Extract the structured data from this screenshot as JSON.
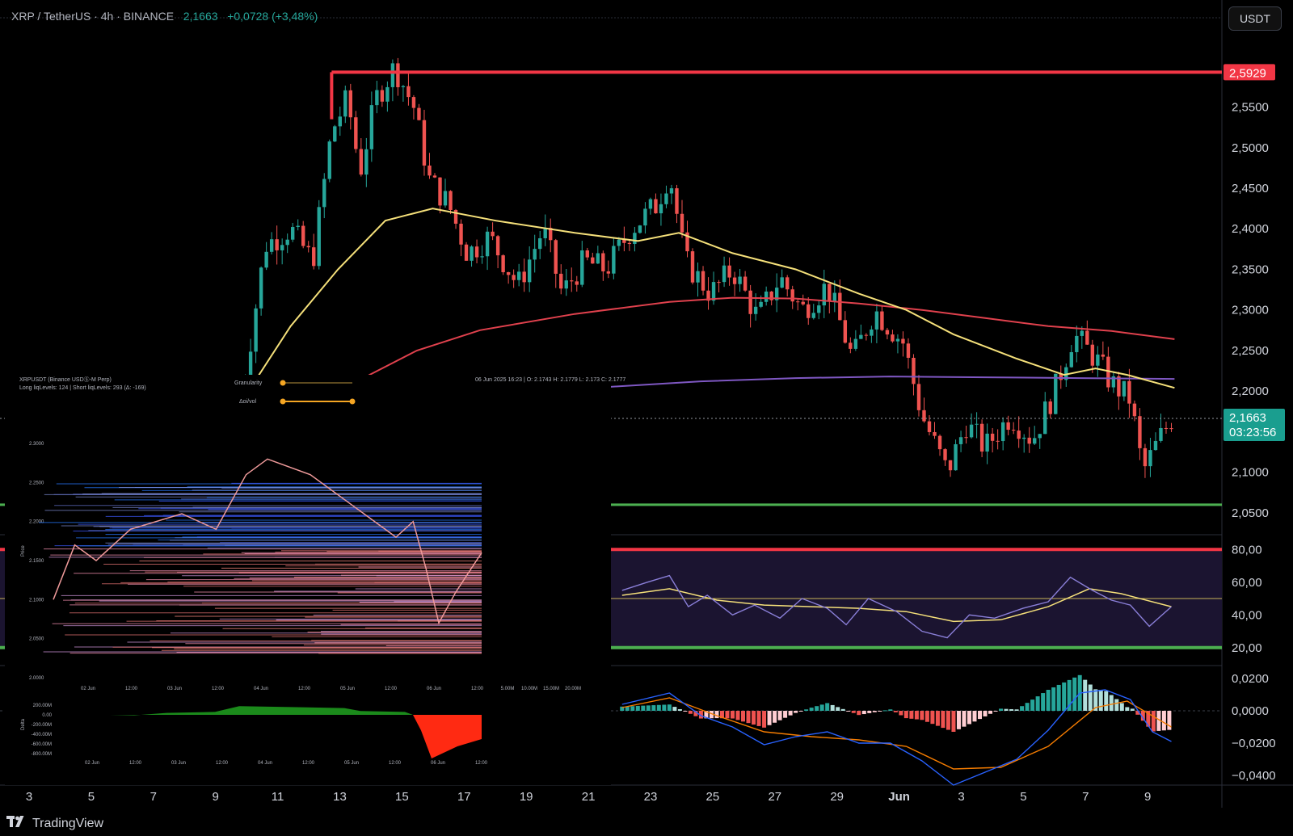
{
  "header": {
    "symbol": "XRP / TetherUS",
    "interval": "4h",
    "exchange": "BINANCE",
    "last": "2,1663",
    "change": "+0,0728 (+3,48%)"
  },
  "currency_button": "USDT",
  "price_axis": {
    "ticks": [
      "2,5500",
      "2,5000",
      "2,4500",
      "2,4000",
      "2,3500",
      "2,3000",
      "2,2500",
      "2,2000",
      "2,1000",
      "2,0500"
    ],
    "level_label": "2,5929",
    "last_label": "2,1663",
    "countdown": "03:23:56"
  },
  "rsi_axis": {
    "ticks": [
      "80,00",
      "60,00",
      "40,00",
      "20,00"
    ]
  },
  "macd_axis": {
    "ticks": [
      "0,0200",
      "0,0000",
      "−0,0200",
      "−0,0400"
    ]
  },
  "time_axis": {
    "labels": [
      "3",
      "5",
      "7",
      "9",
      "11",
      "13",
      "15",
      "17",
      "19",
      "21",
      "23",
      "25",
      "27",
      "29",
      "Jun",
      "3",
      "5",
      "7",
      "9"
    ]
  },
  "brand": "TradingView",
  "colors": {
    "bull": "#26a69a",
    "bear": "#ef5350",
    "resistance": "#f23645",
    "support": "#4caf50",
    "ma_fast": "#f5e07a",
    "ma_slow": "#e0414d",
    "ma_long": "#7e57c2"
  },
  "inset": {
    "title": "XRPUSDT (Binance USDⓈ-M Perp)",
    "subtitle": "Long liqLevels: 124 | Short liqLevels: 293 (Δ: -169)",
    "ohlc": "06 Jun 2025 16:23 | O: 2.1743 H: 2.1779 L: 2.173 C: 2.1777",
    "control1": "Granularity",
    "control2": "Δoi/vol",
    "y_label": "Price",
    "y_ticks": [
      "2.3000",
      "2.2500",
      "2.2000",
      "2.1500",
      "2.1000",
      "2.0500",
      "2.0000"
    ],
    "x_ticks": [
      "02 Jun",
      "12:00",
      "03 Jun",
      "12:00",
      "04 Jun",
      "12:00",
      "05 Jun",
      "12:00",
      "06 Jun",
      "12:00"
    ],
    "vol_ticks": [
      "5.00M",
      "10.00M",
      "15.00M",
      "20.00M"
    ],
    "delta_label": "Delta",
    "delta_ticks": [
      "200.00M",
      "0.00",
      "-200.00M",
      "-400.00M",
      "-600.00M",
      "-800.00M"
    ],
    "delta_x_ticks": [
      "02 Jun",
      "12:00",
      "03 Jun",
      "12:00",
      "04 Jun",
      "12:00",
      "05 Jun",
      "12:00",
      "06 Jun",
      "12:00"
    ]
  },
  "chart_data": [
    {
      "type": "candlestick",
      "title": "XRP / TetherUS · 4h · BINANCE",
      "ylim": [
        2.03,
        2.66
      ],
      "x_range": [
        "May 2",
        "Jun 10"
      ],
      "waypoints": [
        {
          "day": 9.4,
          "price": 2.18
        },
        {
          "day": 10.2,
          "price": 2.38
        },
        {
          "day": 11.0,
          "price": 2.4
        },
        {
          "day": 11.7,
          "price": 2.36
        },
        {
          "day": 12.3,
          "price": 2.52
        },
        {
          "day": 12.8,
          "price": 2.56
        },
        {
          "day": 13.2,
          "price": 2.47
        },
        {
          "day": 13.7,
          "price": 2.56
        },
        {
          "day": 14.3,
          "price": 2.6
        },
        {
          "day": 14.9,
          "price": 2.55
        },
        {
          "day": 15.4,
          "price": 2.46
        },
        {
          "day": 16.0,
          "price": 2.43
        },
        {
          "day": 16.6,
          "price": 2.37
        },
        {
          "day": 17.3,
          "price": 2.39
        },
        {
          "day": 18.2,
          "price": 2.33
        },
        {
          "day": 19.0,
          "price": 2.4
        },
        {
          "day": 19.6,
          "price": 2.32
        },
        {
          "day": 20.3,
          "price": 2.36
        },
        {
          "day": 21.0,
          "price": 2.35
        },
        {
          "day": 21.8,
          "price": 2.4
        },
        {
          "day": 22.6,
          "price": 2.43
        },
        {
          "day": 23.0,
          "price": 2.47
        },
        {
          "day": 23.5,
          "price": 2.36
        },
        {
          "day": 24.3,
          "price": 2.32
        },
        {
          "day": 25.0,
          "price": 2.35
        },
        {
          "day": 25.8,
          "price": 2.29
        },
        {
          "day": 26.5,
          "price": 2.34
        },
        {
          "day": 27.2,
          "price": 2.3
        },
        {
          "day": 28.0,
          "price": 2.33
        },
        {
          "day": 28.8,
          "price": 2.24
        },
        {
          "day": 29.5,
          "price": 2.3
        },
        {
          "day": 30.4,
          "price": 2.26
        },
        {
          "day": 31.0,
          "price": 2.17
        },
        {
          "day": 31.8,
          "price": 2.1
        },
        {
          "day": 32.4,
          "price": 2.16
        },
        {
          "day": 33.0,
          "price": 2.13
        },
        {
          "day": 33.8,
          "price": 2.17
        },
        {
          "day": 34.5,
          "price": 2.14
        },
        {
          "day": 35.2,
          "price": 2.2
        },
        {
          "day": 35.8,
          "price": 2.27
        },
        {
          "day": 36.5,
          "price": 2.24
        },
        {
          "day": 37.0,
          "price": 2.21
        },
        {
          "day": 37.6,
          "price": 2.19
        },
        {
          "day": 38.0,
          "price": 2.1
        },
        {
          "day": 38.5,
          "price": 2.14
        },
        {
          "day": 38.9,
          "price": 2.1663
        }
      ],
      "overlays": {
        "resistance": 2.5929,
        "support": 2.06,
        "last_price": 2.1663,
        "ma_fast": [
          {
            "day": 9.5,
            "price": 2.19
          },
          {
            "day": 11,
            "price": 2.28
          },
          {
            "day": 12.5,
            "price": 2.35
          },
          {
            "day": 14,
            "price": 2.41
          },
          {
            "day": 15.5,
            "price": 2.425
          },
          {
            "day": 17.5,
            "price": 2.41
          },
          {
            "day": 20,
            "price": 2.395
          },
          {
            "day": 22,
            "price": 2.385
          },
          {
            "day": 23.3,
            "price": 2.395
          },
          {
            "day": 25,
            "price": 2.37
          },
          {
            "day": 27,
            "price": 2.35
          },
          {
            "day": 29,
            "price": 2.32
          },
          {
            "day": 30.5,
            "price": 2.3
          },
          {
            "day": 32,
            "price": 2.27
          },
          {
            "day": 34,
            "price": 2.24
          },
          {
            "day": 35.5,
            "price": 2.22
          },
          {
            "day": 36.5,
            "price": 2.228
          },
          {
            "day": 37.5,
            "price": 2.22
          },
          {
            "day": 39,
            "price": 2.204
          }
        ],
        "ma_slow": [
          {
            "day": 12.3,
            "price": 2.19
          },
          {
            "day": 13.5,
            "price": 2.22
          },
          {
            "day": 15,
            "price": 2.25
          },
          {
            "day": 17,
            "price": 2.275
          },
          {
            "day": 20,
            "price": 2.295
          },
          {
            "day": 23,
            "price": 2.31
          },
          {
            "day": 25,
            "price": 2.315
          },
          {
            "day": 27,
            "price": 2.314
          },
          {
            "day": 29,
            "price": 2.308
          },
          {
            "day": 31,
            "price": 2.3
          },
          {
            "day": 33,
            "price": 2.29
          },
          {
            "day": 35,
            "price": 2.28
          },
          {
            "day": 37,
            "price": 2.274
          },
          {
            "day": 39,
            "price": 2.264
          }
        ],
        "ma_long": [
          {
            "day": 21,
            "price": 2.205
          },
          {
            "day": 24,
            "price": 2.212
          },
          {
            "day": 27,
            "price": 2.216
          },
          {
            "day": 30,
            "price": 2.218
          },
          {
            "day": 33,
            "price": 2.217
          },
          {
            "day": 36,
            "price": 2.216
          },
          {
            "day": 39,
            "price": 2.215
          }
        ]
      }
    },
    {
      "type": "line",
      "title": "RSI",
      "ylim": [
        10,
        90
      ],
      "bands": [
        80,
        50,
        20
      ],
      "rsi": [
        {
          "day": 21.5,
          "price": 55
        },
        {
          "day": 22.3,
          "price": 60
        },
        {
          "day": 23.0,
          "price": 64
        },
        {
          "day": 23.6,
          "price": 45
        },
        {
          "day": 24.2,
          "price": 52
        },
        {
          "day": 25.0,
          "price": 40
        },
        {
          "day": 25.7,
          "price": 46
        },
        {
          "day": 26.5,
          "price": 38
        },
        {
          "day": 27.2,
          "price": 50
        },
        {
          "day": 28.0,
          "price": 44
        },
        {
          "day": 28.6,
          "price": 34
        },
        {
          "day": 29.3,
          "price": 50
        },
        {
          "day": 30.2,
          "price": 42
        },
        {
          "day": 31.0,
          "price": 30
        },
        {
          "day": 31.8,
          "price": 26
        },
        {
          "day": 32.5,
          "price": 40
        },
        {
          "day": 33.3,
          "price": 38
        },
        {
          "day": 34.2,
          "price": 44
        },
        {
          "day": 35.0,
          "price": 48
        },
        {
          "day": 35.7,
          "price": 63
        },
        {
          "day": 36.4,
          "price": 55
        },
        {
          "day": 37.0,
          "price": 49
        },
        {
          "day": 37.6,
          "price": 46
        },
        {
          "day": 38.2,
          "price": 33
        },
        {
          "day": 38.9,
          "price": 45
        }
      ],
      "signal": [
        {
          "day": 21.5,
          "price": 52
        },
        {
          "day": 23.0,
          "price": 56
        },
        {
          "day": 24.5,
          "price": 49
        },
        {
          "day": 26.0,
          "price": 46
        },
        {
          "day": 27.5,
          "price": 45
        },
        {
          "day": 29.0,
          "price": 44
        },
        {
          "day": 30.5,
          "price": 42
        },
        {
          "day": 32.0,
          "price": 36
        },
        {
          "day": 33.5,
          "price": 37
        },
        {
          "day": 35.0,
          "price": 45
        },
        {
          "day": 36.3,
          "price": 56
        },
        {
          "day": 37.3,
          "price": 53
        },
        {
          "day": 38.9,
          "price": 45
        }
      ]
    },
    {
      "type": "bar",
      "title": "MACD",
      "ylim": [
        -0.045,
        0.025
      ],
      "macd": [
        {
          "day": 21.5,
          "price": 0.004
        },
        {
          "day": 23.0,
          "price": 0.011
        },
        {
          "day": 24.0,
          "price": -0.003
        },
        {
          "day": 25.0,
          "price": -0.01
        },
        {
          "day": 26.0,
          "price": -0.021
        },
        {
          "day": 27.0,
          "price": -0.016
        },
        {
          "day": 28.0,
          "price": -0.013
        },
        {
          "day": 29.0,
          "price": -0.02
        },
        {
          "day": 30.0,
          "price": -0.02
        },
        {
          "day": 31.0,
          "price": -0.031
        },
        {
          "day": 32.0,
          "price": -0.046
        },
        {
          "day": 33.0,
          "price": -0.038
        },
        {
          "day": 34.0,
          "price": -0.03
        },
        {
          "day": 35.0,
          "price": -0.012
        },
        {
          "day": 36.0,
          "price": 0.011
        },
        {
          "day": 36.8,
          "price": 0.013
        },
        {
          "day": 37.6,
          "price": 0.007
        },
        {
          "day": 38.3,
          "price": -0.013
        },
        {
          "day": 38.9,
          "price": -0.019
        }
      ],
      "signal": [
        {
          "day": 21.5,
          "price": 0.002
        },
        {
          "day": 23.0,
          "price": 0.008
        },
        {
          "day": 24.5,
          "price": -0.003
        },
        {
          "day": 26.0,
          "price": -0.013
        },
        {
          "day": 27.5,
          "price": -0.016
        },
        {
          "day": 29.0,
          "price": -0.018
        },
        {
          "day": 30.5,
          "price": -0.022
        },
        {
          "day": 32.0,
          "price": -0.036
        },
        {
          "day": 33.5,
          "price": -0.035
        },
        {
          "day": 35.0,
          "price": -0.022
        },
        {
          "day": 36.5,
          "price": 0.002
        },
        {
          "day": 37.5,
          "price": 0.006
        },
        {
          "day": 38.9,
          "price": -0.01
        }
      ]
    }
  ]
}
